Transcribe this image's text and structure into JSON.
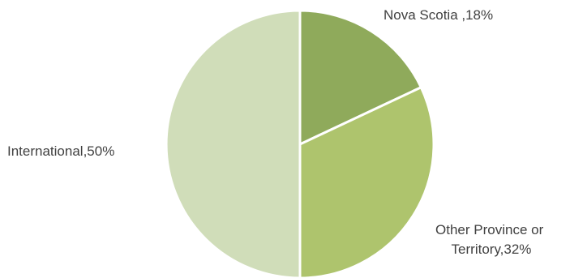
{
  "chart_data": {
    "type": "pie",
    "slices": [
      {
        "label": "Nova Scotia ,18%",
        "category": "Nova Scotia",
        "value": 18,
        "color": "#8faa5b"
      },
      {
        "label": "Other Province or Territory,32%",
        "category": "Other Province or Territory",
        "value": 32,
        "color": "#aec46d"
      },
      {
        "label": "International,50%",
        "category": "International",
        "value": 50,
        "color": "#d0ddb9"
      }
    ]
  }
}
